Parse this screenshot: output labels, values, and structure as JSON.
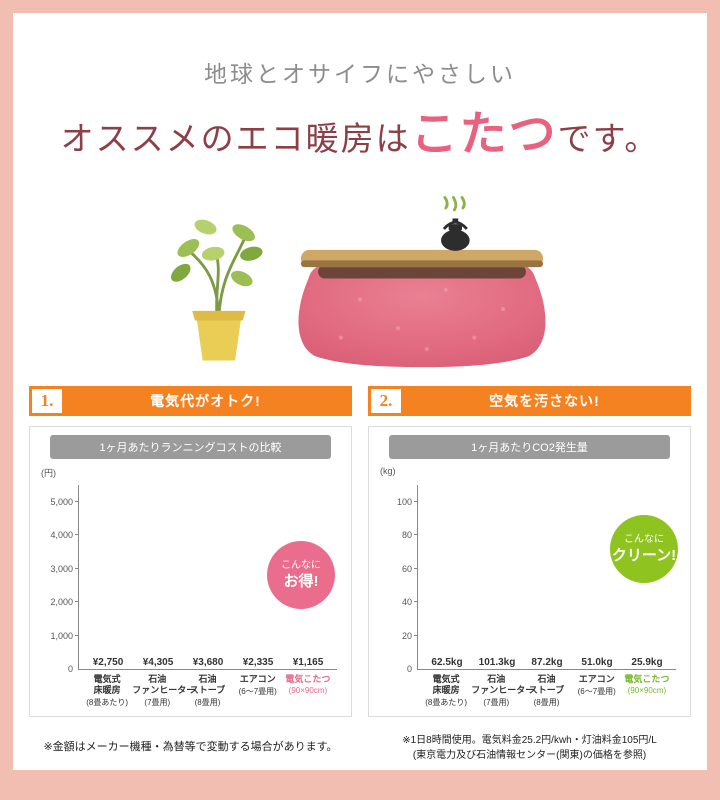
{
  "page": {
    "title_line1": "地球とオサイフにやさしい",
    "title_line2_pre": "オススメのエコ暖房は",
    "title_line2_highlight": "こたつ",
    "title_line2_post": "です。"
  },
  "colors": {
    "frame_pink": "#f3beb2",
    "banner_orange": "#f58220",
    "title_gray": "#8d8d8d",
    "title_maroon": "#8c3f46",
    "highlight_pink": "#e8627f",
    "bar_gray": "#8c8c8c",
    "bar_pink": "#e8688a",
    "bar_green": "#76b82a",
    "badge_pink": "#ea6d8d",
    "badge_green": "#8fc31f",
    "chart_header_gray": "#9b9b9b"
  },
  "sections": [
    {
      "number": "1.",
      "heading": "電気代がオトク!",
      "badge": {
        "line1": "こんなに",
        "line2": "お得!"
      },
      "note_line1": "※金額はメーカー機種・為替等で変動する場合があります。"
    },
    {
      "number": "2.",
      "heading": "空気を汚さない!",
      "badge": {
        "line1": "こんなに",
        "line2": "クリーン!"
      },
      "note_line1": "※1日8時間使用。電気料金25.2円/kwh・灯油料金105円/L",
      "note_line2": "(東京電力及び石油情報センター(関東)の価格を参照)"
    }
  ],
  "chart_data": [
    {
      "type": "bar",
      "title": "1ヶ月あたりランニングコストの比較",
      "ylabel": "(円)",
      "ylim": [
        0,
        5500
      ],
      "yticks": [
        0,
        1000,
        2000,
        3000,
        4000,
        5000
      ],
      "ytick_labels": [
        "0",
        "1,000",
        "2,000",
        "3,000",
        "4,000",
        "5,000"
      ],
      "categories": [
        {
          "lines": [
            "電気式",
            "床暖房"
          ],
          "sub": "(8畳あたり)"
        },
        {
          "lines": [
            "石油",
            "ファンヒーター"
          ],
          "sub": "(7畳用)"
        },
        {
          "lines": [
            "石油",
            "ストーブ"
          ],
          "sub": "(8畳用)"
        },
        {
          "lines": [
            "エアコン"
          ],
          "sub": "(6〜7畳用)"
        },
        {
          "lines": [
            "電気こたつ"
          ],
          "sub": "(90×90cm)",
          "highlight": true
        }
      ],
      "values": [
        2750,
        4305,
        3680,
        2335,
        1165
      ],
      "value_labels": [
        "¥2,750",
        "¥4,305",
        "¥3,680",
        "¥2,335",
        "¥1,165"
      ],
      "bar_colors": [
        "#8c8c8c",
        "#8c8c8c",
        "#8c8c8c",
        "#8c8c8c",
        "#e8688a"
      ],
      "highlight_color": "#e8688a",
      "badge_color": "#ea6d8d",
      "grid": false,
      "legend": "none"
    },
    {
      "type": "bar",
      "title": "1ヶ月あたりCO2発生量",
      "ylabel": "(kg)",
      "ylim": [
        0,
        110
      ],
      "yticks": [
        0,
        20,
        40,
        60,
        80,
        100
      ],
      "ytick_labels": [
        "0",
        "20",
        "40",
        "60",
        "80",
        "100"
      ],
      "categories": [
        {
          "lines": [
            "電気式",
            "床暖房"
          ],
          "sub": "(8畳あたり)"
        },
        {
          "lines": [
            "石油",
            "ファンヒーター"
          ],
          "sub": "(7畳用)"
        },
        {
          "lines": [
            "石油",
            "ストーブ"
          ],
          "sub": "(8畳用)"
        },
        {
          "lines": [
            "エアコン"
          ],
          "sub": "(6〜7畳用)"
        },
        {
          "lines": [
            "電気こたつ"
          ],
          "sub": "(90×90cm)",
          "highlight": true
        }
      ],
      "values": [
        62.5,
        101.3,
        87.2,
        51.0,
        25.9
      ],
      "value_labels": [
        "62.5kg",
        "101.3kg",
        "87.2kg",
        "51.0kg",
        "25.9kg"
      ],
      "bar_colors": [
        "#8c8c8c",
        "#8c8c8c",
        "#8c8c8c",
        "#8c8c8c",
        "#76b82a"
      ],
      "highlight_color": "#76b82a",
      "badge_color": "#8fc31f",
      "grid": false,
      "legend": "none"
    }
  ]
}
